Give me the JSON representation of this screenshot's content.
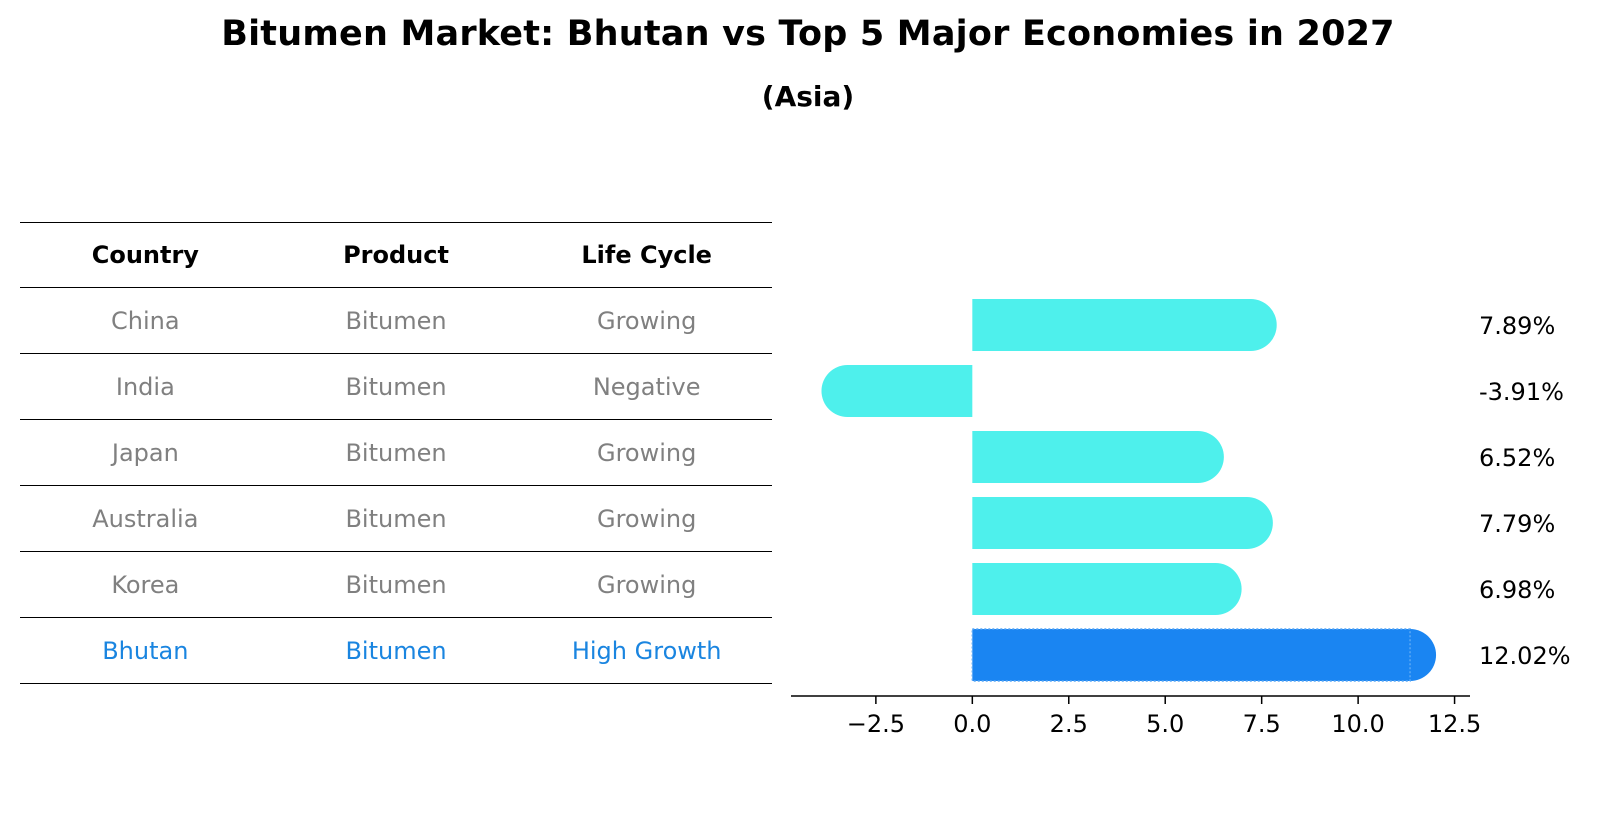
{
  "title": "Bitumen Market: Bhutan vs Top 5 Major Economies in 2027",
  "subtitle": "(Asia)",
  "table": {
    "headers": [
      "Country",
      "Product",
      "Life Cycle"
    ],
    "rows": [
      {
        "country": "China",
        "product": "Bitumen",
        "life_cycle": "Growing"
      },
      {
        "country": "India",
        "product": "Bitumen",
        "life_cycle": "Negative"
      },
      {
        "country": "Japan",
        "product": "Bitumen",
        "life_cycle": "Growing"
      },
      {
        "country": "Australia",
        "product": "Bitumen",
        "life_cycle": "Growing"
      },
      {
        "country": "Korea",
        "product": "Bitumen",
        "life_cycle": "Growing"
      },
      {
        "country": "Bhutan",
        "product": "Bitumen",
        "life_cycle": "High Growth"
      }
    ]
  },
  "colors": {
    "bar": "#4ef0ec",
    "highlight_bar": "#1a85f2",
    "muted_text": "#808080",
    "highlight_text": "#1a85e0"
  },
  "chart_data": {
    "type": "bar",
    "orientation": "horizontal",
    "categories": [
      "China",
      "India",
      "Japan",
      "Australia",
      "Korea",
      "Bhutan"
    ],
    "values": [
      7.89,
      -3.91,
      6.52,
      7.79,
      6.98,
      12.02
    ],
    "value_labels": [
      "7.89%",
      "-3.91%",
      "6.52%",
      "7.79%",
      "6.98%",
      "12.02%"
    ],
    "highlight_category": "Bhutan",
    "xlim": [
      -4.7,
      12.9
    ],
    "xticks": [
      -2.5,
      0.0,
      2.5,
      5.0,
      7.5,
      10.0,
      12.5
    ],
    "xtick_labels": [
      "−2.5",
      "0.0",
      "2.5",
      "5.0",
      "7.5",
      "10.0",
      "12.5"
    ],
    "grid": false,
    "legend": "none"
  }
}
